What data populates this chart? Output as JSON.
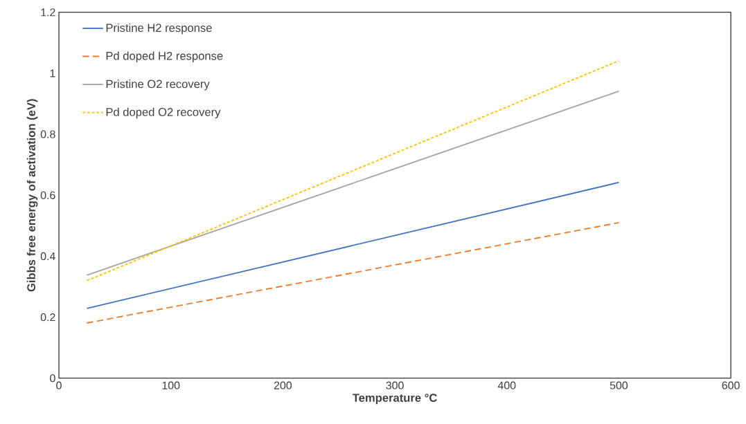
{
  "chart_data": {
    "type": "line",
    "xlabel": "Temperature °C",
    "ylabel": "Gibbs free energy of activation (eV)",
    "xlim": [
      0,
      600
    ],
    "xticks": [
      0,
      100,
      200,
      300,
      400,
      500,
      600
    ],
    "ylim": [
      0,
      1.2
    ],
    "yticks": [
      0,
      0.2,
      0.4,
      0.6,
      0.8,
      1,
      1.2
    ],
    "x": [
      25,
      500
    ],
    "grid": false,
    "legend": "top left",
    "marker": "none",
    "series": [
      {
        "name": "Pristine H2 response",
        "color": "#4472c4",
        "line_style": "solid",
        "values": [
          0.229,
          0.642
        ]
      },
      {
        "name": "Pd doped H2 response",
        "color": "#ed7d31",
        "line_style": "dashed",
        "values": [
          0.181,
          0.51
        ]
      },
      {
        "name": "Pristine O2 recovery",
        "color": "#a5a5a5",
        "line_style": "solid",
        "values": [
          0.338,
          0.941
        ]
      },
      {
        "name": "Pd doped O2 recovery",
        "color": "#ffc000",
        "line_style": "dotted",
        "values": [
          0.32,
          1.041
        ]
      }
    ]
  }
}
